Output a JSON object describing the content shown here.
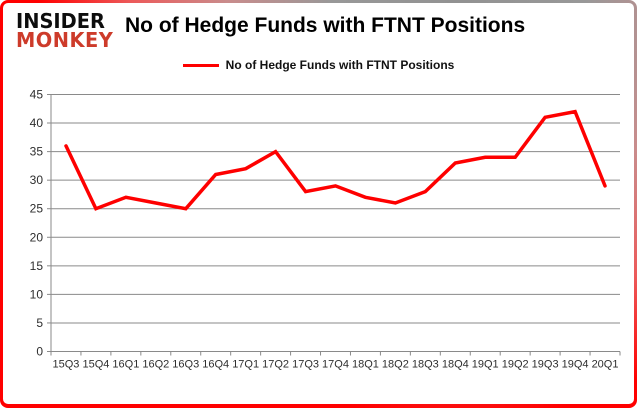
{
  "header": {
    "logo": {
      "line1": "INSIDER",
      "line2": "MONKEY"
    },
    "title": "No of Hedge Funds with FTNT Positions"
  },
  "legend": {
    "label": "No of Hedge Funds with FTNT Positions",
    "line_color": "#fe0000"
  },
  "chart_data": {
    "type": "line",
    "title": "No of Hedge Funds with FTNT Positions",
    "categories": [
      "15Q3",
      "15Q4",
      "16Q1",
      "16Q2",
      "16Q3",
      "16Q4",
      "17Q1",
      "17Q2",
      "17Q3",
      "17Q4",
      "18Q1",
      "18Q2",
      "18Q3",
      "18Q4",
      "19Q1",
      "19Q2",
      "19Q3",
      "19Q4",
      "20Q1"
    ],
    "series": [
      {
        "name": "No of Hedge Funds with FTNT Positions",
        "color": "#fe0000",
        "values": [
          36,
          25,
          27,
          26,
          25,
          31,
          32,
          35,
          28,
          29,
          27,
          26,
          28,
          33,
          34,
          34,
          41,
          42,
          29
        ]
      }
    ],
    "xlabel": "",
    "ylabel": "",
    "ylim": [
      0,
      45
    ],
    "yticks": [
      0,
      5,
      10,
      15,
      20,
      25,
      30,
      35,
      40,
      45
    ],
    "grid": true,
    "legend_position": "top",
    "grid_color": "#8a8a8a",
    "axis_color": "#8a8a8a",
    "tick_label_color": "#2e2e2e"
  },
  "colors": {
    "logo_black": "#0d0d0d",
    "logo_red": "#cd3b2a",
    "background": "#ffffff"
  }
}
